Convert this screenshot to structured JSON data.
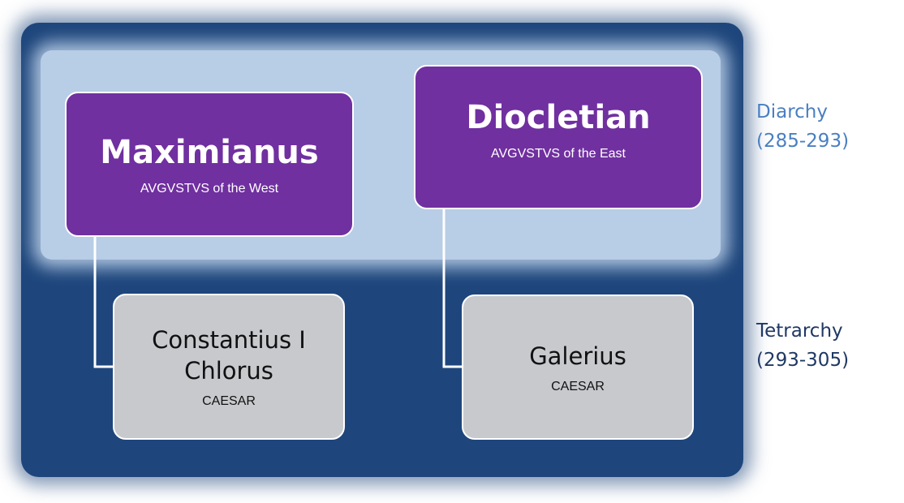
{
  "colors": {
    "augustus_fill": "#7030a0",
    "caesar_fill": "#c7c9cd",
    "frame_dark": "#1e467c",
    "band_light": "#b8cde6",
    "diarchy_label": "#4a7fc1",
    "tetrarchy_label": "#1f3864"
  },
  "augusti": {
    "west": {
      "name": "Maximianus",
      "title": "AVGVSTVS of the West"
    },
    "east": {
      "name": "Diocletian",
      "title": "AVGVSTVS of the East"
    }
  },
  "caesares": {
    "west": {
      "name_line1": "Constantius I",
      "name_line2": "Chlorus",
      "title": "CAESAR"
    },
    "east": {
      "name": "Galerius",
      "title": "CAESAR"
    }
  },
  "eras": {
    "diarchy": {
      "name": "Diarchy",
      "years": "(285-293)"
    },
    "tetrarchy": {
      "name": "Tetrarchy",
      "years": "(293-305)"
    }
  }
}
